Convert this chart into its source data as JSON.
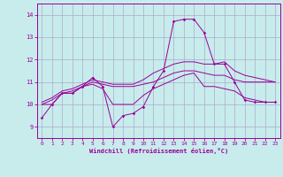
{
  "xlabel": "Windchill (Refroidissement éolien,°C)",
  "bg_color": "#c8ecec",
  "line_color": "#990099",
  "grid_color": "#aaaacc",
  "xlim": [
    -0.5,
    23.5
  ],
  "ylim": [
    8.5,
    14.5
  ],
  "yticks": [
    9,
    10,
    11,
    12,
    13,
    14
  ],
  "xticks": [
    0,
    1,
    2,
    3,
    4,
    5,
    6,
    7,
    8,
    9,
    10,
    11,
    12,
    13,
    14,
    15,
    16,
    17,
    18,
    19,
    20,
    21,
    22,
    23
  ],
  "line1": [
    9.4,
    10.0,
    10.5,
    10.5,
    10.8,
    11.2,
    10.8,
    9.0,
    9.5,
    9.6,
    9.9,
    10.8,
    11.5,
    13.7,
    13.8,
    13.8,
    13.2,
    11.8,
    11.8,
    11.0,
    10.2,
    10.1,
    10.1,
    10.1
  ],
  "line2": [
    10.0,
    10.0,
    10.5,
    10.5,
    10.8,
    10.9,
    10.7,
    10.0,
    10.0,
    10.0,
    10.4,
    10.7,
    10.9,
    11.1,
    11.3,
    11.4,
    10.8,
    10.8,
    10.7,
    10.6,
    10.3,
    10.2,
    10.1,
    10.1
  ],
  "line3": [
    10.0,
    10.2,
    10.5,
    10.6,
    10.8,
    11.0,
    10.9,
    10.8,
    10.8,
    10.8,
    10.9,
    11.0,
    11.2,
    11.4,
    11.5,
    11.5,
    11.4,
    11.3,
    11.3,
    11.1,
    11.0,
    11.0,
    11.0,
    11.0
  ],
  "line4": [
    10.1,
    10.3,
    10.6,
    10.7,
    10.9,
    11.1,
    11.0,
    10.9,
    10.9,
    10.9,
    11.1,
    11.4,
    11.6,
    11.8,
    11.9,
    11.9,
    11.8,
    11.8,
    11.9,
    11.5,
    11.3,
    11.2,
    11.1,
    11.0
  ]
}
